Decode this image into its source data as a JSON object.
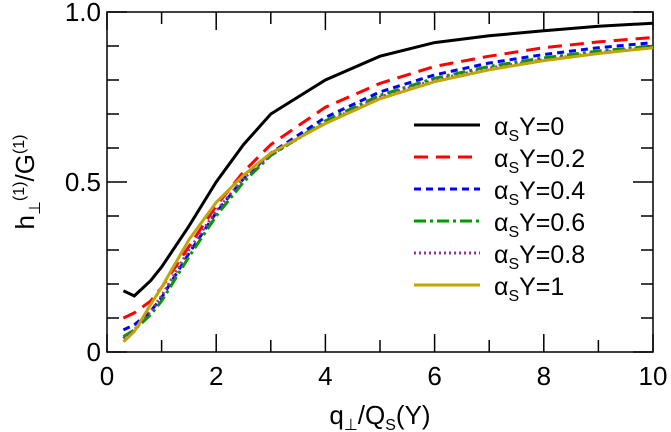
{
  "chart_data": {
    "type": "line",
    "title": "",
    "xlabel": "q⊥/Qs(Y)",
    "ylabel": "h⊥(1)/G(1)",
    "xlim": [
      0,
      10
    ],
    "ylim": [
      0,
      1.0
    ],
    "xticks": [
      0,
      2,
      4,
      6,
      8,
      10
    ],
    "yticks": [
      0,
      0.5,
      1.0
    ],
    "xtick_labels": [
      "0",
      "2",
      "4",
      "6",
      "8",
      "10"
    ],
    "ytick_labels": [
      "0",
      "0.5",
      "1.0"
    ],
    "grid": false,
    "legend_placement": "right",
    "series": [
      {
        "name": "αsY=0",
        "color": "#000000",
        "dash": "solid",
        "x": [
          0.3,
          0.5,
          0.8,
          1,
          1.5,
          2,
          2.5,
          3,
          4,
          5,
          6,
          7,
          8,
          9,
          10
        ],
        "y": [
          0.18,
          0.165,
          0.21,
          0.25,
          0.37,
          0.5,
          0.61,
          0.7,
          0.8,
          0.87,
          0.91,
          0.93,
          0.945,
          0.958,
          0.967
        ]
      },
      {
        "name": "αsY=0.2",
        "color": "#ff0000",
        "dash": "long-dash",
        "x": [
          0.3,
          0.5,
          0.8,
          1,
          1.5,
          2,
          2.5,
          3,
          4,
          5,
          6,
          7,
          8,
          9,
          10
        ],
        "y": [
          0.1,
          0.115,
          0.15,
          0.19,
          0.31,
          0.43,
          0.53,
          0.61,
          0.72,
          0.79,
          0.84,
          0.87,
          0.895,
          0.912,
          0.925
        ]
      },
      {
        "name": "αsY=0.4",
        "color": "#0000ff",
        "dash": "short-dash",
        "x": [
          0.3,
          0.5,
          0.8,
          1,
          1.5,
          2,
          2.5,
          3,
          4,
          5,
          6,
          7,
          8,
          9,
          10
        ],
        "y": [
          0.065,
          0.08,
          0.12,
          0.16,
          0.29,
          0.41,
          0.51,
          0.585,
          0.69,
          0.765,
          0.815,
          0.85,
          0.875,
          0.895,
          0.91
        ]
      },
      {
        "name": "αsY=0.6",
        "color": "#009900",
        "dash": "dash-dot",
        "x": [
          0.3,
          0.5,
          0.8,
          1,
          1.5,
          2,
          2.5,
          3,
          4,
          5,
          6,
          7,
          8,
          9,
          10
        ],
        "y": [
          0.045,
          0.065,
          0.11,
          0.15,
          0.28,
          0.4,
          0.5,
          0.578,
          0.68,
          0.755,
          0.805,
          0.84,
          0.865,
          0.885,
          0.9
        ]
      },
      {
        "name": "αsY=0.8",
        "color": "#993399",
        "dash": "dotted",
        "x": [
          0.3,
          0.5,
          0.8,
          1,
          1.5,
          2,
          2.5,
          3,
          4,
          5,
          6,
          7,
          8,
          9,
          10
        ],
        "y": [
          0.04,
          0.065,
          0.12,
          0.165,
          0.3,
          0.415,
          0.51,
          0.58,
          0.675,
          0.75,
          0.8,
          0.835,
          0.86,
          0.88,
          0.897
        ]
      },
      {
        "name": "αsY=1",
        "color": "#bfa600",
        "dash": "solid",
        "x": [
          0.3,
          0.5,
          0.8,
          1,
          1.5,
          2,
          2.5,
          3,
          4,
          5,
          6,
          7,
          8,
          9,
          10
        ],
        "y": [
          0.03,
          0.06,
          0.14,
          0.19,
          0.33,
          0.44,
          0.52,
          0.585,
          0.672,
          0.745,
          0.795,
          0.83,
          0.857,
          0.878,
          0.895
        ]
      }
    ]
  }
}
